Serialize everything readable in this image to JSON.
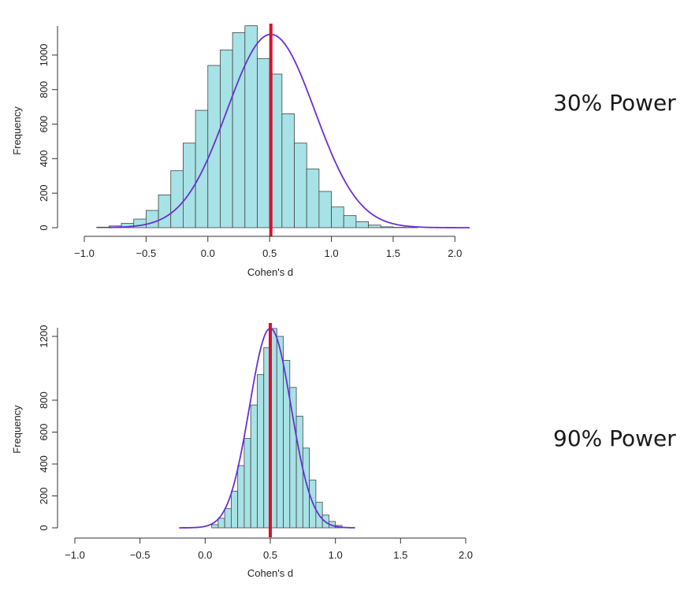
{
  "panels": [
    {
      "power_label": "30% Power"
    },
    {
      "power_label": "90% Power"
    }
  ],
  "colors": {
    "bar_fill": "#a7e2e6",
    "bar_stroke": "#444444",
    "density_curve": "#6a2fd6",
    "reference_line": "#d8102e",
    "axis": "#333333"
  },
  "chart_data": [
    {
      "type": "bar",
      "subtype": "histogram-with-density",
      "xlabel": "Cohen's d",
      "ylabel": "Frequency",
      "xlim": [
        -1.0,
        2.1
      ],
      "ylim": [
        0,
        1220
      ],
      "x_ticks": [
        -1.0,
        -0.5,
        0.0,
        0.5,
        1.0,
        1.5,
        2.0
      ],
      "x_tick_labels": [
        "−1.0",
        "−0.5",
        "0.0",
        "0.5",
        "1.0",
        "1.5",
        "2.0"
      ],
      "y_ticks": [
        0,
        200,
        400,
        600,
        800,
        1000
      ],
      "y_tick_labels": [
        "0",
        "200",
        "400",
        "600",
        "800",
        "1000"
      ],
      "bin_width": 0.1,
      "bin_start": -0.9,
      "counts": [
        3,
        10,
        25,
        50,
        100,
        190,
        330,
        490,
        680,
        940,
        1030,
        1130,
        1170,
        980,
        890,
        660,
        490,
        340,
        210,
        120,
        70,
        35,
        15,
        5,
        2,
        1,
        0
      ],
      "density_mean": 0.51,
      "density_sd": 0.355,
      "density_peak": 1120,
      "density_range": [
        -0.8,
        2.12
      ],
      "reference_line_x": 0.51
    },
    {
      "type": "bar",
      "subtype": "histogram-with-density",
      "xlabel": "Cohen's d",
      "ylabel": "Frequency",
      "xlim": [
        -1.0,
        2.0
      ],
      "ylim": [
        0,
        1300
      ],
      "x_ticks": [
        -1.0,
        -0.5,
        0.0,
        0.5,
        1.0,
        1.5,
        2.0
      ],
      "x_tick_labels": [
        "−1.0",
        "−0.5",
        "0.0",
        "0.5",
        "1.0",
        "1.5",
        "2.0"
      ],
      "y_ticks": [
        0,
        200,
        400,
        600,
        800,
        1200
      ],
      "y_tick_labels": [
        "0",
        "200",
        "400",
        "600",
        "800",
        "1200"
      ],
      "bin_width": 0.05,
      "bin_start": 0.05,
      "counts": [
        20,
        60,
        120,
        230,
        390,
        560,
        770,
        960,
        1130,
        1250,
        1200,
        1050,
        880,
        700,
        500,
        300,
        160,
        80,
        40,
        15
      ],
      "density_mean": 0.5,
      "density_sd": 0.16,
      "density_peak": 1250,
      "density_range": [
        -0.2,
        1.15
      ],
      "reference_line_x": 0.5
    }
  ]
}
